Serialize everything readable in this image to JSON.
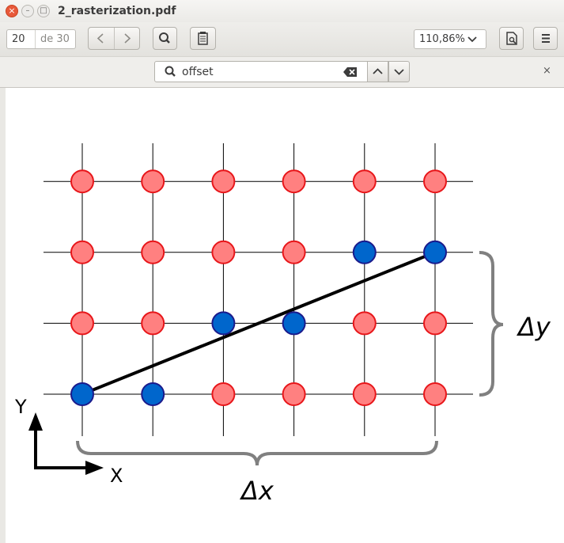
{
  "window": {
    "title": "2_rasterization.pdf",
    "close_glyph": "×",
    "min_glyph": "–",
    "max_glyph": "□"
  },
  "toolbar": {
    "page_current": "20",
    "page_total": "de 30",
    "prev_icon": "chevron-left-icon",
    "next_icon": "chevron-right-icon",
    "zoom_value": "110,86%",
    "zoom_arrow": "⌄"
  },
  "find": {
    "query": "offset",
    "close_glyph": "×"
  },
  "figure": {
    "y_axis_label": "Y",
    "x_axis_label": "X",
    "delta_x_label": "Δx",
    "delta_y_label": "Δy",
    "grid_cols": 6,
    "grid_rows": 4,
    "blue_pixels": [
      [
        0,
        0
      ],
      [
        1,
        0
      ],
      [
        2,
        1
      ],
      [
        3,
        1
      ],
      [
        4,
        2
      ],
      [
        5,
        2
      ]
    ],
    "line_from": [
      0,
      0
    ],
    "line_to": [
      5,
      2
    ],
    "colors": {
      "red_fill": "#ff8080",
      "red_stroke": "#e8161a",
      "blue_fill": "#0066cc",
      "blue_stroke": "#1a1a8c",
      "brace": "#808080"
    }
  }
}
